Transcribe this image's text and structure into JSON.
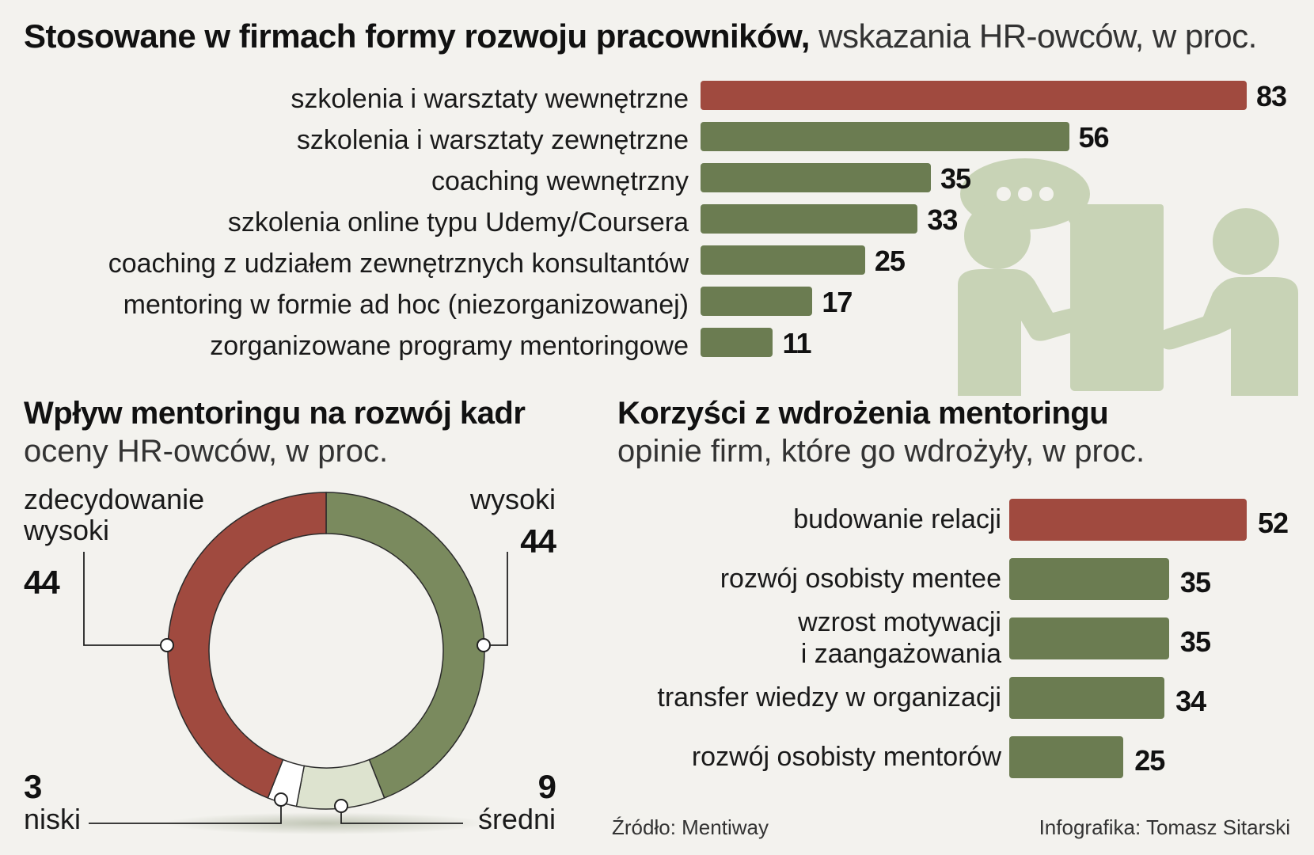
{
  "colors": {
    "highlight": "#a04a3f",
    "bar_green": "#6b7c51",
    "donut_green": "#7a8a5e",
    "donut_light": "#dde3cf",
    "donut_white": "#ffffff",
    "illustration": "#c8d3b6"
  },
  "top": {
    "title_bold": "Stosowane w firmach formy rozwoju pracowników,",
    "title_light": " wskazania HR-owców, w proc."
  },
  "left": {
    "title": "Wpływ mentoringu na rozwój kadr",
    "subtitle": "oceny HR-owców, w proc."
  },
  "right": {
    "title": "Korzyści z wdrożenia mentoringu",
    "subtitle": "opinie firm, które go wdrożyły, w proc."
  },
  "footer": {
    "source": "Źródło: Mentiway",
    "credit": "Infografika: Tomasz Sitarski"
  },
  "icons": {
    "illustration": "mentoring-people-speech-icon"
  },
  "chart_data": [
    {
      "type": "bar",
      "orientation": "horizontal",
      "categories": [
        "szkolenia i warsztaty wewnętrzne",
        "szkolenia i warsztaty zewnętrzne",
        "coaching wewnętrzny",
        "szkolenia online typu Udemy/Coursera",
        "coaching z udziałem zewnętrznych konsultantów",
        "mentoring w formie ad hoc (niezorganizowanej)",
        "zorganizowane programy mentoringowe"
      ],
      "values": [
        83,
        56,
        35,
        33,
        25,
        17,
        11
      ],
      "highlight_index": 0
    },
    {
      "type": "pie",
      "donut": true,
      "slices": [
        {
          "label": "wysoki",
          "value": 44,
          "color": "#7a8a5e"
        },
        {
          "label": "średni",
          "value": 9,
          "color": "#dde3cf"
        },
        {
          "label": "niski",
          "value": 3,
          "color": "#ffffff"
        },
        {
          "label": "zdecydowanie wysoki",
          "value": 44,
          "color": "#a04a3f"
        }
      ]
    },
    {
      "type": "bar",
      "orientation": "horizontal",
      "categories": [
        "budowanie relacji",
        "rozwój osobisty mentee",
        "wzrost motywacji i zaangażowania",
        "transfer wiedzy w organizacji",
        "rozwój osobisty mentorów"
      ],
      "label_lines": [
        [
          "budowanie relacji"
        ],
        [
          "rozwój osobisty mentee"
        ],
        [
          "wzrost motywacji",
          "i zaangażowania"
        ],
        [
          "transfer wiedzy w organizacji"
        ],
        [
          "rozwój osobisty mentorów"
        ]
      ],
      "values": [
        52,
        35,
        35,
        34,
        25
      ],
      "highlight_index": 0
    }
  ]
}
